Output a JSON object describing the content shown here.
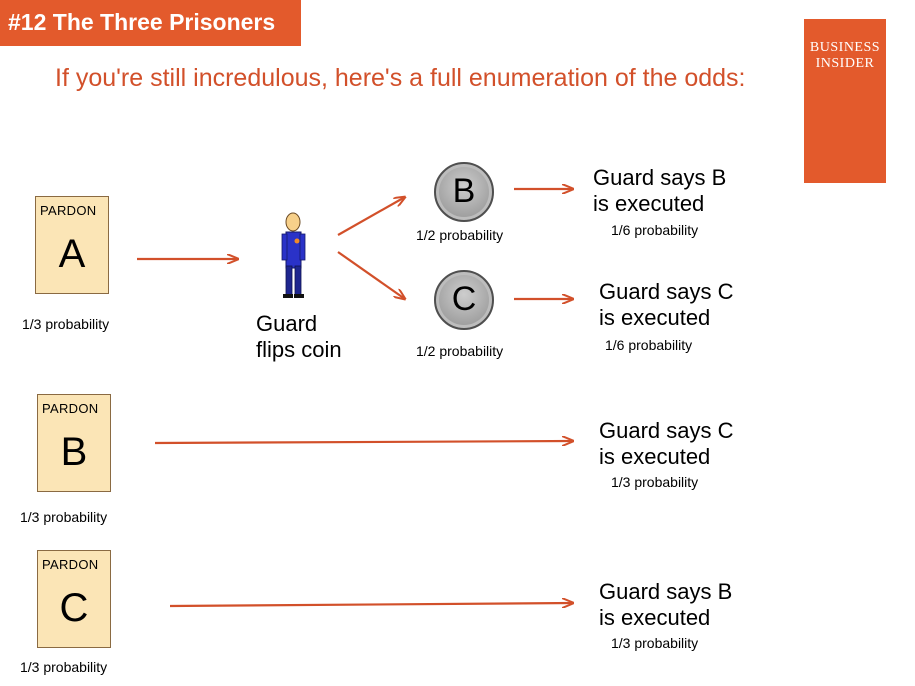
{
  "slide": {
    "title": "#12  The Three Prisoners",
    "subtitle": "If you're still incredulous, here's a full enumeration of the odds:",
    "logo": {
      "line1": "BUSINESS",
      "line2": "INSIDER"
    }
  },
  "colors": {
    "accent": "#e35a2c",
    "arrow": "#d2502a",
    "card_fill": "#fbe5b6",
    "coin_fill": "#a9a9a9"
  },
  "cards": [
    {
      "heading": "PARDON",
      "letter": "A",
      "probability": "1/3 probability"
    },
    {
      "heading": "PARDON",
      "letter": "B",
      "probability": "1/3 probability"
    },
    {
      "heading": "PARDON",
      "letter": "C",
      "probability": "1/3 probability"
    }
  ],
  "guard": {
    "label_line1": "Guard",
    "label_line2": "flips coin",
    "icon": "guard-figure-icon"
  },
  "coins": [
    {
      "letter": "B",
      "probability": "1/2 probability"
    },
    {
      "letter": "C",
      "probability": "1/2 probability"
    }
  ],
  "outcomes": [
    {
      "line1": "Guard says B",
      "line2": "is executed",
      "probability": "1/6 probability"
    },
    {
      "line1": "Guard says C",
      "line2": "is executed",
      "probability": "1/6 probability"
    },
    {
      "line1": "Guard says C",
      "line2": "is executed",
      "probability": "1/3 probability"
    },
    {
      "line1": "Guard says B",
      "line2": "is executed",
      "probability": "1/3 probability"
    }
  ]
}
